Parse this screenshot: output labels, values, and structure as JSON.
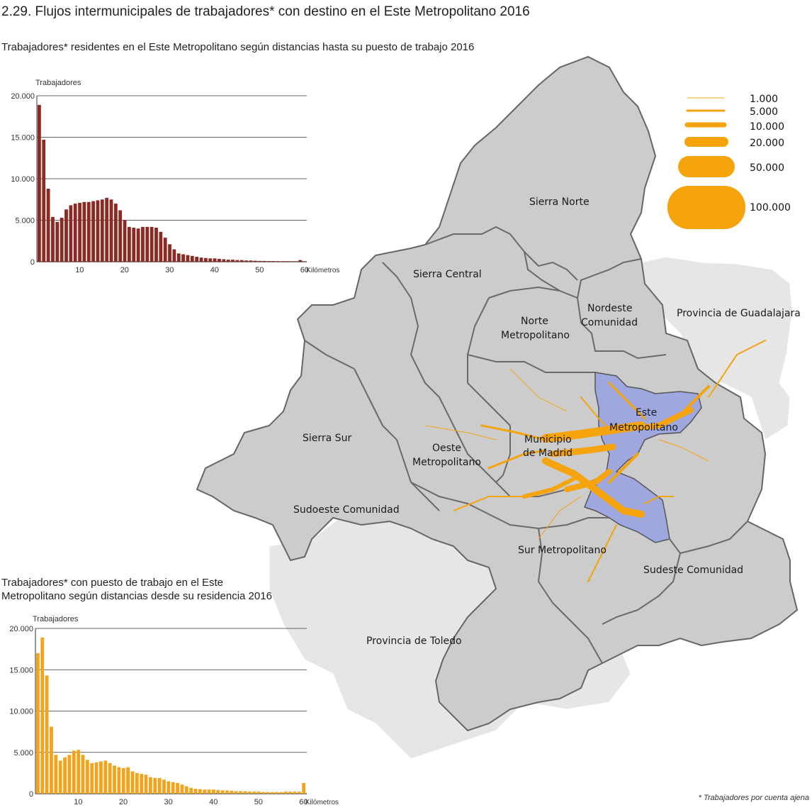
{
  "title": "2.29. Flujos intermunicipales de trabajadores* con destino en el Este Metropolitano 2016",
  "footnote": "* Trabajadores por cuenta ajena",
  "colors": {
    "chart1_bar": "#8b2a22",
    "chart2_bar": "#f2a51c",
    "flow": "#f5a40e",
    "region_grey": "#cfcfcf",
    "outside_grey": "#e7e7e7",
    "este_blue": "#9ea8df",
    "boundary": "#6b6b6b"
  },
  "chart_data": [
    {
      "type": "bar",
      "title": "Trabajadores* residentes en el Este Metropolitano según distancias hasta su puesto de trabajo 2016",
      "ylabel": "Trabajadores",
      "xlabel": "Kilómetros",
      "ylim": [
        0,
        20000
      ],
      "yticks": [
        "20.000",
        "15.000",
        "10.000",
        "5.000",
        "0"
      ],
      "ytick_values": [
        20000,
        15000,
        10000,
        5000,
        0
      ],
      "xticks": [
        "10",
        "20",
        "30",
        "40",
        "50",
        "60"
      ],
      "xtick_values": [
        10,
        20,
        30,
        40,
        50,
        60
      ],
      "x": [
        1,
        2,
        3,
        4,
        5,
        6,
        7,
        8,
        9,
        10,
        11,
        12,
        13,
        14,
        15,
        16,
        17,
        18,
        19,
        20,
        21,
        22,
        23,
        24,
        25,
        26,
        27,
        28,
        29,
        30,
        31,
        32,
        33,
        34,
        35,
        36,
        37,
        38,
        39,
        40,
        41,
        42,
        43,
        44,
        45,
        46,
        47,
        48,
        49,
        50,
        51,
        52,
        53,
        54,
        55,
        56,
        57,
        58,
        59,
        60
      ],
      "values": [
        18900,
        14700,
        8800,
        5400,
        4800,
        5300,
        6300,
        6800,
        7000,
        7100,
        7200,
        7200,
        7300,
        7400,
        7500,
        7700,
        7500,
        7000,
        6200,
        5000,
        4200,
        4100,
        4000,
        4200,
        4200,
        4200,
        4100,
        3600,
        2900,
        2100,
        1500,
        1000,
        900,
        800,
        700,
        600,
        500,
        450,
        400,
        400,
        350,
        300,
        250,
        250,
        200,
        200,
        150,
        150,
        120,
        100,
        100,
        80,
        80,
        70,
        60,
        60,
        50,
        50,
        200,
        50
      ]
    },
    {
      "type": "bar",
      "title": "Trabajadores* con puesto de trabajo en el Este Metropolitano según distancias desde su residencia 2016",
      "ylabel": "Trabajadores",
      "xlabel": "Kilómetros",
      "ylim": [
        0,
        20000
      ],
      "yticks": [
        "20.000",
        "15.000",
        "10.000",
        "5.000",
        "0"
      ],
      "ytick_values": [
        20000,
        15000,
        10000,
        5000,
        0
      ],
      "xticks": [
        "10",
        "20",
        "30",
        "40",
        "50",
        "60"
      ],
      "xtick_values": [
        10,
        20,
        30,
        40,
        50,
        60
      ],
      "x": [
        1,
        2,
        3,
        4,
        5,
        6,
        7,
        8,
        9,
        10,
        11,
        12,
        13,
        14,
        15,
        16,
        17,
        18,
        19,
        20,
        21,
        22,
        23,
        24,
        25,
        26,
        27,
        28,
        29,
        30,
        31,
        32,
        33,
        34,
        35,
        36,
        37,
        38,
        39,
        40,
        41,
        42,
        43,
        44,
        45,
        46,
        47,
        48,
        49,
        50,
        51,
        52,
        53,
        54,
        55,
        56,
        57,
        58,
        59,
        60
      ],
      "values": [
        17000,
        18900,
        14300,
        8100,
        4700,
        4000,
        4400,
        4700,
        5200,
        5300,
        4700,
        4100,
        3700,
        3800,
        3900,
        4000,
        3700,
        3400,
        3200,
        3100,
        3200,
        2700,
        2500,
        2400,
        2300,
        2000,
        1900,
        1900,
        1700,
        1500,
        1400,
        1300,
        1100,
        900,
        700,
        600,
        550,
        500,
        500,
        500,
        450,
        400,
        400,
        350,
        300,
        300,
        300,
        250,
        250,
        250,
        200,
        200,
        200,
        200,
        200,
        250,
        250,
        250,
        250,
        1300
      ]
    }
  ],
  "map": {
    "regions": [
      {
        "name": "Sierra Norte",
        "lines": [
          "Sierra Norte"
        ]
      },
      {
        "name": "Sierra Central",
        "lines": [
          "Sierra Central"
        ]
      },
      {
        "name": "Norte Metropolitano",
        "lines": [
          "Norte",
          "Metropolitano"
        ]
      },
      {
        "name": "Nordeste Comunidad",
        "lines": [
          "Nordeste",
          "Comunidad"
        ]
      },
      {
        "name": "Provincia de Guadalajara",
        "lines": [
          "Provincia de Guadalajara"
        ]
      },
      {
        "name": "Este Metropolitano",
        "lines": [
          "Este",
          "Metropolitano"
        ]
      },
      {
        "name": "Sierra Sur",
        "lines": [
          "Sierra Sur"
        ]
      },
      {
        "name": "Oeste Metropolitano",
        "lines": [
          "Oeste",
          "Metropolitano"
        ]
      },
      {
        "name": "Municipio de Madrid",
        "lines": [
          "Municipio",
          "de Madrid"
        ]
      },
      {
        "name": "Sudoeste Comunidad",
        "lines": [
          "Sudoeste Comunidad"
        ]
      },
      {
        "name": "Sur Metropolitano",
        "lines": [
          "Sur Metropolitano"
        ]
      },
      {
        "name": "Sudeste Comunidad",
        "lines": [
          "Sudeste Comunidad"
        ]
      },
      {
        "name": "Provincia de Toledo",
        "lines": [
          "Provincia de Toledo"
        ]
      }
    ],
    "legend": [
      "1.000",
      "5.000",
      "10.000",
      "20.000",
      "50.000",
      "100.000"
    ]
  }
}
